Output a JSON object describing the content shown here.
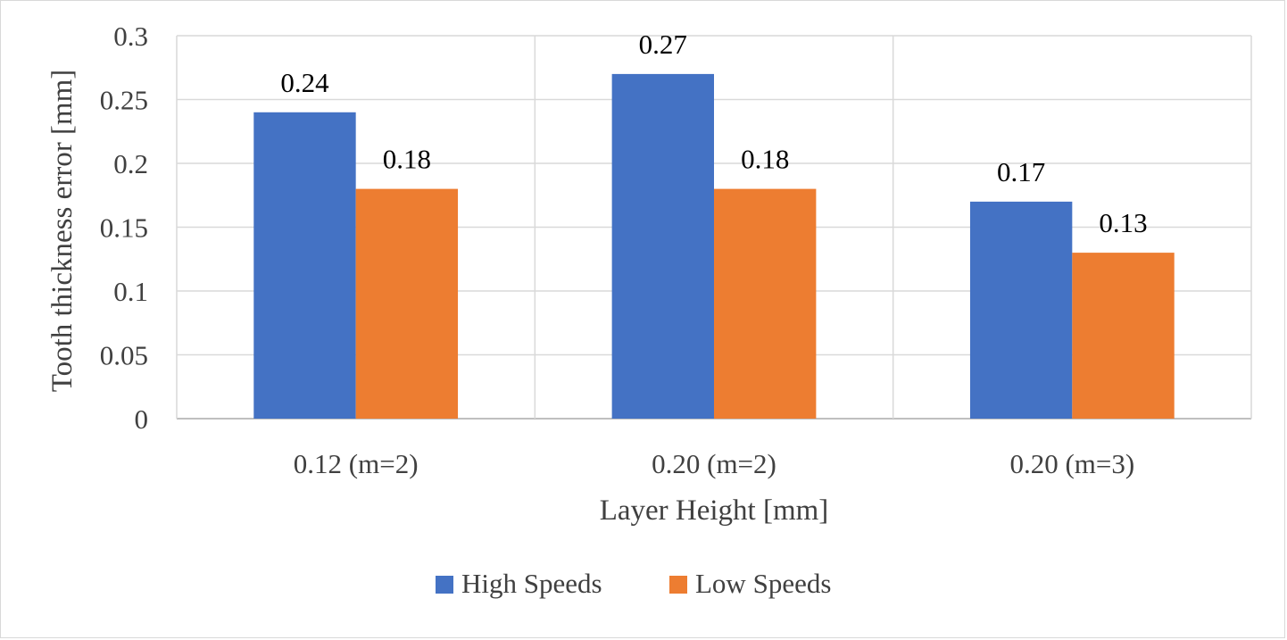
{
  "chart_data": {
    "type": "bar",
    "title": "",
    "xlabel": "Layer Height [mm]",
    "ylabel": "Tooth thickness error [mm]",
    "categories": [
      "0.12 (m=2)",
      "0.20 (m=2)",
      "0.20 (m=3)"
    ],
    "series": [
      {
        "name": "High Speeds",
        "values": [
          0.24,
          0.27,
          0.17
        ],
        "color": "#4472c4"
      },
      {
        "name": "Low Speeds",
        "values": [
          0.18,
          0.18,
          0.13
        ],
        "color": "#ed7d31"
      }
    ],
    "ylim": [
      0,
      0.3
    ],
    "yticks": [
      0,
      0.05,
      0.1,
      0.15,
      0.2,
      0.25,
      0.3
    ],
    "ytick_labels": [
      "0",
      "0.05",
      "0.1",
      "0.15",
      "0.2",
      "0.25",
      "0.3"
    ],
    "data_labels": [
      [
        "0.24",
        "0.27",
        "0.17"
      ],
      [
        "0.18",
        "0.18",
        "0.13"
      ]
    ],
    "grid": true,
    "legend_position": "bottom"
  }
}
